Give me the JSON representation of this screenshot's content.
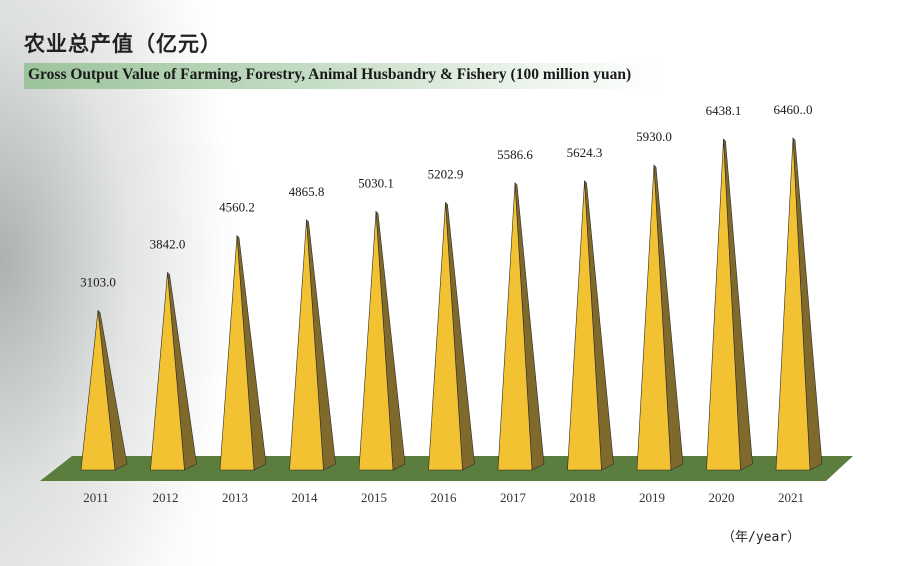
{
  "title_cn": "农业总产值（亿元）",
  "title_en": "Gross Output Value of Farming, Forestry, Animal Husbandry & Fishery (100 million yuan)",
  "unit_label": "（年/year）",
  "colors": {
    "spike_front": "#f2c232",
    "spike_side": "#7f6a2c",
    "floor": "#5b7d3d",
    "title_band": "#9cc39c"
  },
  "chart_data": {
    "type": "bar",
    "title": "Gross Output Value of Farming, Forestry, Animal Husbandry & Fishery (100 million yuan)",
    "xlabel": "（年/year）",
    "ylabel": "",
    "categories": [
      "2011",
      "2012",
      "2013",
      "2014",
      "2015",
      "2016",
      "2017",
      "2018",
      "2019",
      "2020",
      "2021"
    ],
    "values": [
      3103.0,
      3842.0,
      4560.2,
      4865.8,
      5030.1,
      5202.9,
      5586.6,
      5624.3,
      5930.0,
      6438.1,
      6460.0
    ],
    "data_labels": [
      "3103.0",
      "3842.0",
      "4560.2",
      "4865.8",
      "5030.1",
      "5202.9",
      "5586.6",
      "5624.3",
      "5930.0",
      "6438.1",
      "6460..0"
    ],
    "grid": false,
    "legend": "none"
  }
}
